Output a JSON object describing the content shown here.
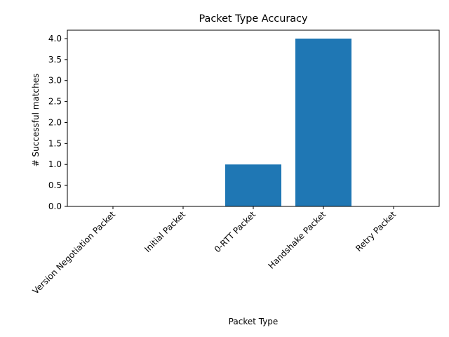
{
  "chart_data": {
    "type": "bar",
    "title": "Packet Type Accuracy",
    "xlabel": "Packet Type",
    "ylabel": "# Successful matches",
    "categories": [
      "Version Negotiation Packet",
      "Initial Packet",
      "0-RTT Packet",
      "Handshake Packet",
      "Retry Packet"
    ],
    "values": [
      0,
      0,
      1,
      4,
      0
    ],
    "ylim": [
      0,
      4.2
    ],
    "yticks": [
      "0.0",
      "0.5",
      "1.0",
      "1.5",
      "2.0",
      "2.5",
      "3.0",
      "3.5",
      "4.0"
    ],
    "grid": false,
    "bar_color": "#1f77b4"
  }
}
